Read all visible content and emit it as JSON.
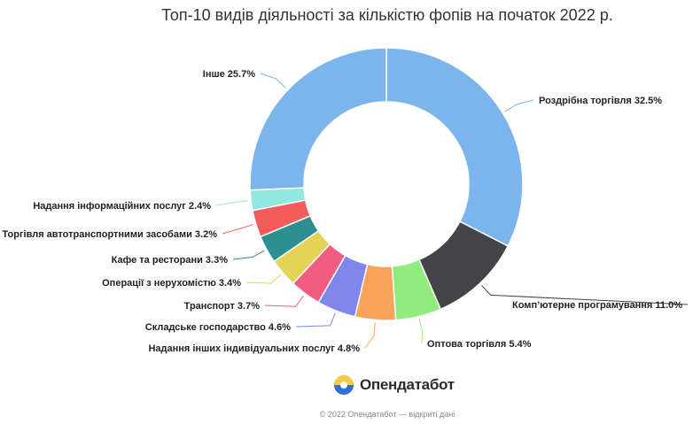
{
  "chart_data": {
    "type": "pie",
    "donut": true,
    "title": "Топ-10 видів діяльності за кількістю фопів на початок 2022 р.",
    "slices": [
      {
        "label": "Роздрібна торгівля 32.5%",
        "value": 32.5,
        "color": "#7cb5ec"
      },
      {
        "label": "Комп’ютерне програмування 11.0%",
        "value": 11.0,
        "color": "#434348"
      },
      {
        "label": "Оптова торгівля 5.4%",
        "value": 5.4,
        "color": "#90ed7d"
      },
      {
        "label": "Надання інших індивідуальних послуг 4.8%",
        "value": 4.8,
        "color": "#f7a35c"
      },
      {
        "label": "Складське господарство 4.6%",
        "value": 4.6,
        "color": "#8085e9"
      },
      {
        "label": "Транспорт 3.7%",
        "value": 3.7,
        "color": "#f15c80"
      },
      {
        "label": "Операції з нерухомістю 3.4%",
        "value": 3.4,
        "color": "#e4d354"
      },
      {
        "label": "Кафе та ресторани 3.3%",
        "value": 3.3,
        "color": "#2b908f"
      },
      {
        "label": "Торгівля автотранспортними засобами 3.2%",
        "value": 3.2,
        "color": "#f45b5b"
      },
      {
        "label": "Надання інформаційних послуг 2.4%",
        "value": 2.4,
        "color": "#91e8e1"
      },
      {
        "label": "Інше 25.7%",
        "value": 25.7,
        "color": "#7cb5ec"
      }
    ]
  },
  "brand": {
    "name": "Опендатабот"
  },
  "footer": {
    "copyright": "© 2022 Опендатабот — відкриті дані"
  }
}
